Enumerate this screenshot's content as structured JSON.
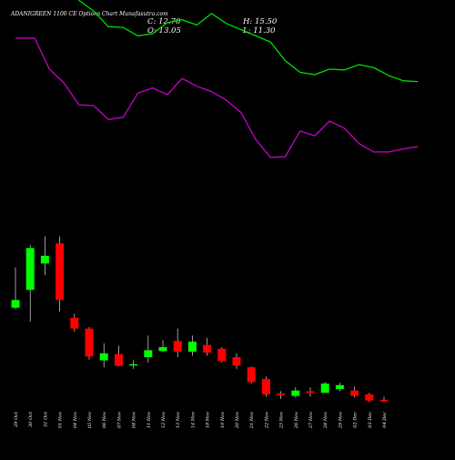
{
  "header": {
    "title": "ADANIGREEN 1100 CE Options Chart Munafasutra.com",
    "close": "C: 12.70",
    "open": "O: 13.05",
    "high": "H: 15.50",
    "low": "L: 11.30"
  },
  "colors": {
    "background": "#000000",
    "up": "#00ff00",
    "down": "#ff0000",
    "upper_line": "#00dd00",
    "lower_line": "#cc00cc",
    "wick": "#dddddd",
    "text": "#ffffff"
  },
  "chart_data": {
    "type": "candlestick",
    "x": [
      "29 Oct",
      "30 Oct",
      "31 Oct",
      "01 Nov",
      "04 Nov",
      "05 Nov",
      "06 Nov",
      "07 Nov",
      "08 Nov",
      "11 Nov",
      "12 Nov",
      "13 Nov",
      "14 Nov",
      "18 Nov",
      "19 Nov",
      "20 Nov",
      "21 Nov",
      "22 Nov",
      "25 Nov",
      "26 Nov",
      "27 Nov",
      "28 Nov",
      "29 Nov",
      "02 Dec",
      "03 Dec",
      "04 Dec"
    ],
    "candles": [
      {
        "open": 105,
        "close": 115,
        "high": 157,
        "low": 103
      },
      {
        "open": 128,
        "close": 182,
        "high": 186,
        "low": 87
      },
      {
        "open": 162,
        "close": 172,
        "high": 197,
        "low": 147
      },
      {
        "open": 188,
        "close": 115,
        "high": 197,
        "low": 100
      },
      {
        "open": 92,
        "close": 78,
        "high": 97,
        "low": 74
      },
      {
        "open": 78,
        "close": 42,
        "high": 80,
        "low": 38
      },
      {
        "open": 37,
        "close": 46,
        "high": 59,
        "low": 28
      },
      {
        "open": 45,
        "close": 30,
        "high": 56,
        "low": 29
      },
      {
        "open": 31,
        "close": 32,
        "high": 37,
        "low": 26
      },
      {
        "open": 41,
        "close": 50,
        "high": 69,
        "low": 34
      },
      {
        "open": 49,
        "close": 54,
        "high": 63,
        "low": 48
      },
      {
        "open": 62,
        "close": 48,
        "high": 78,
        "low": 41
      },
      {
        "open": 48,
        "close": 61,
        "high": 69,
        "low": 43
      },
      {
        "open": 57,
        "close": 47,
        "high": 66,
        "low": 43
      },
      {
        "open": 52,
        "close": 36,
        "high": 54,
        "low": 34
      },
      {
        "open": 41,
        "close": 30,
        "high": 46,
        "low": 26
      },
      {
        "open": 28,
        "close": 9,
        "high": 29,
        "low": 7
      },
      {
        "open": 13,
        "close": -7,
        "high": 16,
        "low": -10
      },
      {
        "open": -6,
        "close": -8,
        "high": -3,
        "low": -13
      },
      {
        "open": -9,
        "close": -2,
        "high": 2,
        "low": -11
      },
      {
        "open": -3,
        "close": -5,
        "high": 2,
        "low": -10
      },
      {
        "open": -5,
        "close": 7,
        "high": 9,
        "low": -5
      },
      {
        "open": 0,
        "close": 5,
        "high": 8,
        "low": -3
      },
      {
        "open": -2,
        "close": -9,
        "high": 3,
        "low": -11
      },
      {
        "open": -7,
        "close": -15,
        "high": -5,
        "low": -17
      },
      {
        "open": -14,
        "close": -16,
        "high": -10,
        "low": -17
      }
    ],
    "upper_band": [
      {
        "x": 0.0,
        "y": 510
      },
      {
        "x": 1.3,
        "y": 510
      },
      {
        "x": 2.3,
        "y": 535
      },
      {
        "x": 3.3,
        "y": 528
      },
      {
        "x": 4.3,
        "y": 502
      },
      {
        "x": 5.3,
        "y": 488
      },
      {
        "x": 6.3,
        "y": 468
      },
      {
        "x": 7.3,
        "y": 467
      },
      {
        "x": 8.3,
        "y": 456
      },
      {
        "x": 9.3,
        "y": 459
      },
      {
        "x": 10.3,
        "y": 473
      },
      {
        "x": 11.3,
        "y": 477
      },
      {
        "x": 12.3,
        "y": 470
      },
      {
        "x": 13.3,
        "y": 485
      },
      {
        "x": 14.3,
        "y": 472
      },
      {
        "x": 15.3,
        "y": 464
      },
      {
        "x": 16.3,
        "y": 456
      },
      {
        "x": 17.3,
        "y": 448
      },
      {
        "x": 18.3,
        "y": 424
      },
      {
        "x": 19.3,
        "y": 409
      },
      {
        "x": 20.3,
        "y": 406
      },
      {
        "x": 21.3,
        "y": 413
      },
      {
        "x": 22.3,
        "y": 412
      },
      {
        "x": 23.3,
        "y": 419
      },
      {
        "x": 24.3,
        "y": 415
      },
      {
        "x": 25.3,
        "y": 405
      },
      {
        "x": 26.3,
        "y": 398
      },
      {
        "x": 27.3,
        "y": 397
      }
    ],
    "lower_band": [
      {
        "x": 0.0,
        "y": 453
      },
      {
        "x": 1.3,
        "y": 453
      },
      {
        "x": 2.3,
        "y": 413
      },
      {
        "x": 3.3,
        "y": 395
      },
      {
        "x": 4.3,
        "y": 367
      },
      {
        "x": 5.3,
        "y": 366
      },
      {
        "x": 6.3,
        "y": 348
      },
      {
        "x": 7.3,
        "y": 351
      },
      {
        "x": 8.3,
        "y": 382
      },
      {
        "x": 9.3,
        "y": 389
      },
      {
        "x": 10.3,
        "y": 380
      },
      {
        "x": 11.3,
        "y": 401
      },
      {
        "x": 12.3,
        "y": 391
      },
      {
        "x": 13.3,
        "y": 384
      },
      {
        "x": 14.3,
        "y": 373
      },
      {
        "x": 15.3,
        "y": 357
      },
      {
        "x": 16.3,
        "y": 322
      },
      {
        "x": 17.3,
        "y": 299
      },
      {
        "x": 18.3,
        "y": 300
      },
      {
        "x": 19.3,
        "y": 333
      },
      {
        "x": 20.3,
        "y": 327
      },
      {
        "x": 21.3,
        "y": 346
      },
      {
        "x": 22.3,
        "y": 337
      },
      {
        "x": 23.3,
        "y": 317
      },
      {
        "x": 24.3,
        "y": 306
      },
      {
        "x": 25.3,
        "y": 306
      },
      {
        "x": 26.3,
        "y": 310
      },
      {
        "x": 27.3,
        "y": 313
      }
    ],
    "xlabel": "",
    "ylabel": "",
    "grid": false
  }
}
